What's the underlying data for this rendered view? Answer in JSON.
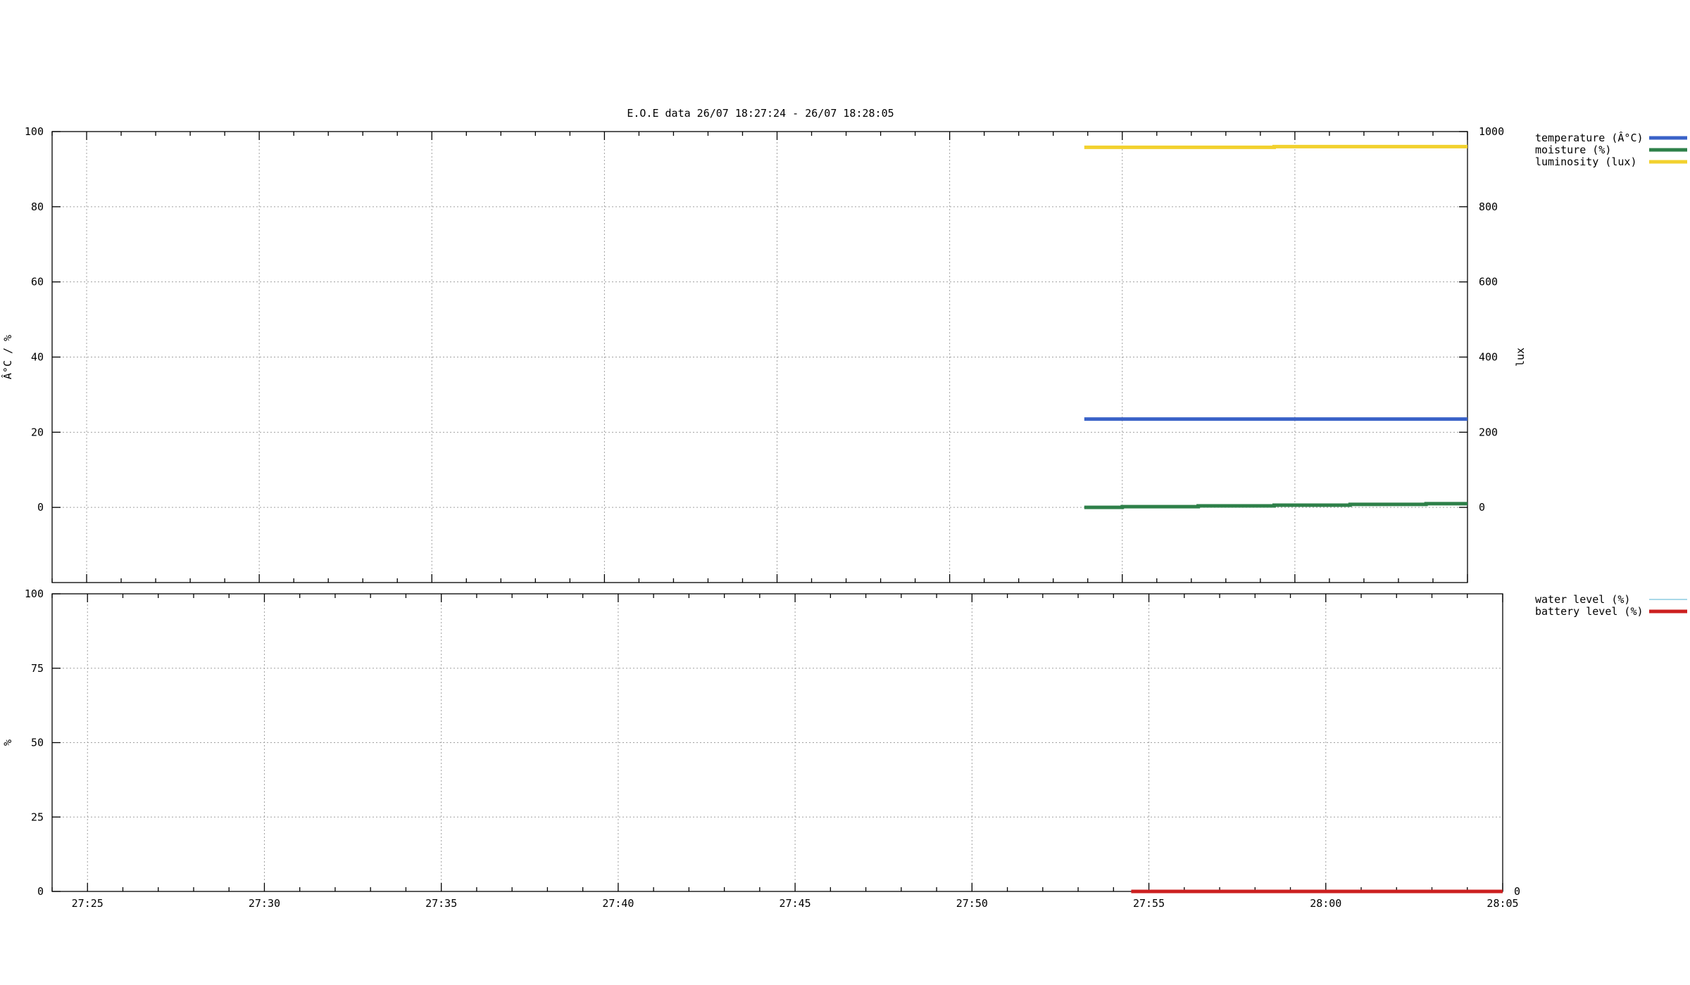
{
  "chart_data": [
    {
      "type": "line",
      "title": "E.O.E data 26/07 18:27:24 - 26/07 18:28:05",
      "ylabel": "Â°C / %",
      "y2label": "lux",
      "ylim": [
        -20,
        100
      ],
      "y2lim": [
        -200,
        1000
      ],
      "yticks": [
        0,
        20,
        40,
        60,
        80,
        100
      ],
      "y2ticks": [
        0,
        200,
        400,
        600,
        800,
        1000
      ],
      "xrange_seconds": [
        24,
        65
      ],
      "grid": true,
      "legend_position": "right",
      "series": [
        {
          "name": "temperature (Â°C)",
          "axis": "left",
          "color": "#3a62c8",
          "x": [
            53.9,
            65
          ],
          "y": [
            23.5,
            23.5
          ]
        },
        {
          "name": "moisture (%)",
          "axis": "left",
          "color": "#2e8049",
          "x": [
            53.9,
            55,
            57.2,
            59.4,
            61.6,
            63.8,
            65
          ],
          "y": [
            0,
            0.2,
            0.4,
            0.6,
            0.8,
            1.0,
            1.0
          ]
        },
        {
          "name": "luminosity (lux)",
          "axis": "right",
          "color": "#f2d12e",
          "x": [
            53.9,
            58.5,
            59.4,
            65
          ],
          "y": [
            958,
            958,
            960,
            960
          ]
        }
      ]
    },
    {
      "type": "line",
      "ylabel": "%",
      "ylim": [
        0,
        100
      ],
      "yticks": [
        0,
        25,
        50,
        75,
        100
      ],
      "y2ticks": [
        0
      ],
      "xrange_seconds": [
        24,
        65
      ],
      "xticks": [
        "27:25",
        "27:30",
        "27:35",
        "27:40",
        "27:45",
        "27:50",
        "27:55",
        "28:00",
        "28:05"
      ],
      "xtick_seconds": [
        25,
        30,
        35,
        40,
        45,
        50,
        55,
        60,
        65
      ],
      "grid": true,
      "legend_position": "right",
      "series": [
        {
          "name": "water level (%)",
          "axis": "left",
          "color": "#8ccbe0",
          "x": [],
          "y": []
        },
        {
          "name": "battery level (%)",
          "axis": "left",
          "color": "#cc1f1f",
          "x": [
            54.5,
            65
          ],
          "y": [
            0,
            0
          ]
        }
      ]
    }
  ]
}
